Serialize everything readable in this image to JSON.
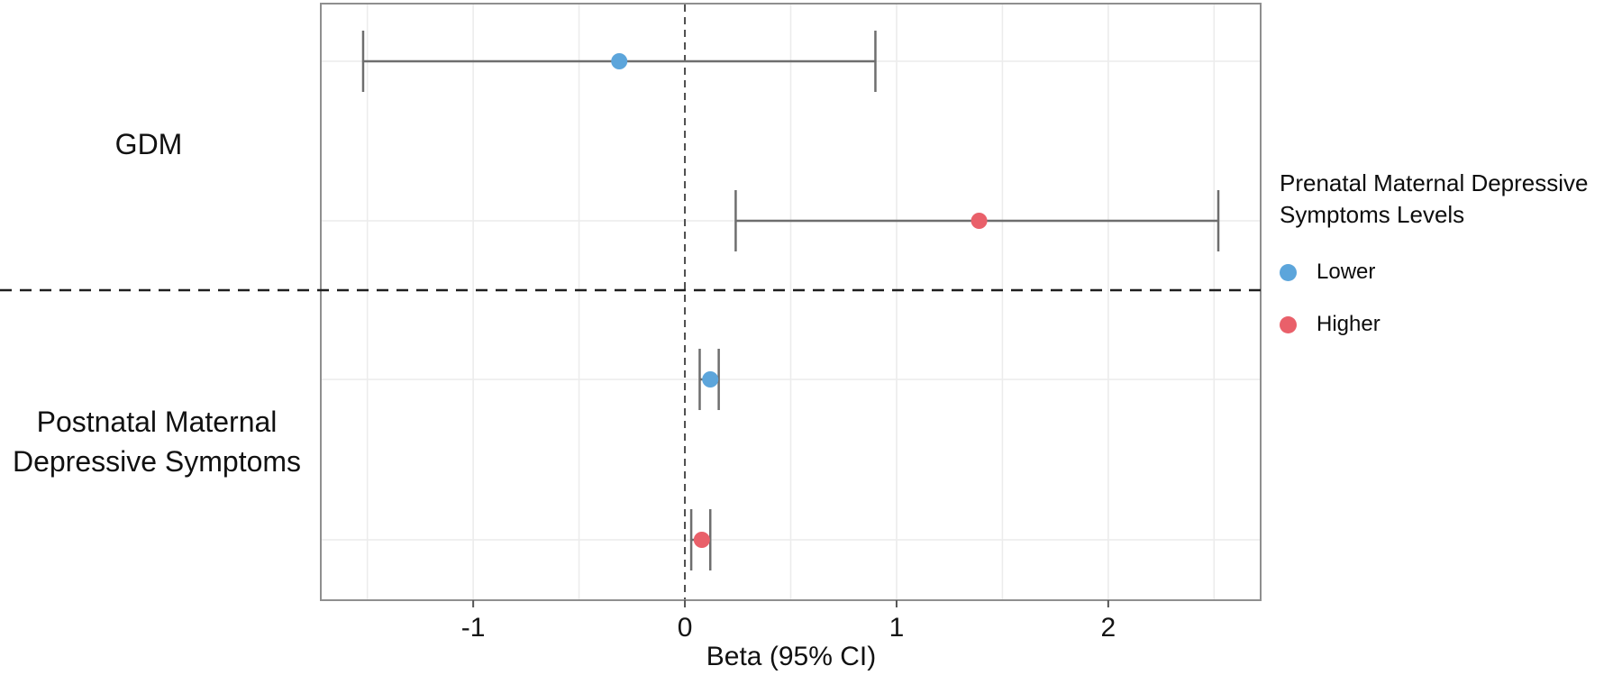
{
  "chart_data": {
    "type": "scatter",
    "subtype": "forest-plot",
    "title": "",
    "xlabel": "Beta (95% CI)",
    "ylabel": "",
    "xlim": [
      -1.72,
      2.72
    ],
    "x_ticks": [
      -1,
      0,
      1,
      2
    ],
    "grid": "on",
    "minor_grid_step": 0.5,
    "reference_line_x": 0,
    "group_separator": "dashed horizontal line between GDM and Postnatal groups",
    "rows": [
      {
        "group": "GDM",
        "level": "Lower",
        "beta": -0.31,
        "ci_low": -1.52,
        "ci_high": 0.9
      },
      {
        "group": "GDM",
        "level": "Higher",
        "beta": 1.39,
        "ci_low": 0.24,
        "ci_high": 2.52
      },
      {
        "group": "Postnatal Maternal Depressive Symptoms",
        "level": "Lower",
        "beta": 0.12,
        "ci_low": 0.07,
        "ci_high": 0.16
      },
      {
        "group": "Postnatal Maternal Depressive Symptoms",
        "level": "Higher",
        "beta": 0.08,
        "ci_low": 0.03,
        "ci_high": 0.12
      }
    ],
    "group_labels": [
      {
        "lines": {
          "0": "GDM",
          "1": ""
        }
      },
      {
        "lines": {
          "0": "Postnatal Maternal",
          "1": "Depressive Symptoms"
        }
      }
    ],
    "legend": {
      "position": "right",
      "title_lines": {
        "0": "Prenatal Maternal Depressive",
        "1": "Symptoms Levels"
      },
      "items": [
        {
          "label": "Lower",
          "color": "#5CA5DB"
        },
        {
          "label": "Higher",
          "color": "#E9606A"
        }
      ]
    },
    "colors": {
      "lower_point": "#5CA5DB",
      "higher_point": "#E9606A",
      "error_bar": "#6E6E6E",
      "gridline": "#ECECEC",
      "panel_border": "#8F8F8F",
      "reference_line": "#4D4D4D",
      "separator_line": "#1F1F1F"
    }
  }
}
